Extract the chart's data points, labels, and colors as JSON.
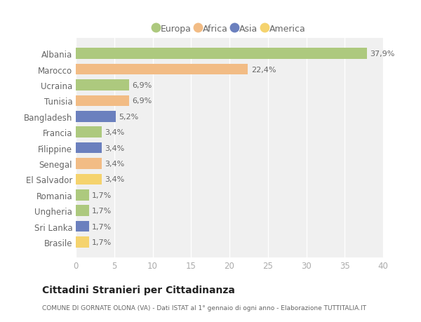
{
  "categories": [
    "Albania",
    "Marocco",
    "Ucraina",
    "Tunisia",
    "Bangladesh",
    "Francia",
    "Filippine",
    "Senegal",
    "El Salvador",
    "Romania",
    "Ungheria",
    "Sri Lanka",
    "Brasile"
  ],
  "values": [
    37.9,
    22.4,
    6.9,
    6.9,
    5.2,
    3.4,
    3.4,
    3.4,
    3.4,
    1.7,
    1.7,
    1.7,
    1.7
  ],
  "labels": [
    "37,9%",
    "22,4%",
    "6,9%",
    "6,9%",
    "5,2%",
    "3,4%",
    "3,4%",
    "3,4%",
    "3,4%",
    "1,7%",
    "1,7%",
    "1,7%",
    "1,7%"
  ],
  "continents": [
    "Europa",
    "Africa",
    "Europa",
    "Africa",
    "Asia",
    "Europa",
    "Asia",
    "Africa",
    "America",
    "Europa",
    "Europa",
    "Asia",
    "America"
  ],
  "colors": {
    "Europa": "#adc97e",
    "Africa": "#f2bc85",
    "Asia": "#6b80be",
    "America": "#f5d36e"
  },
  "background_color": "#ffffff",
  "plot_bg_color": "#f0f0f0",
  "title": "Cittadini Stranieri per Cittadinanza",
  "subtitle": "COMUNE DI GORNATE OLONA (VA) - Dati ISTAT al 1° gennaio di ogni anno - Elaborazione TUTTITALIA.IT",
  "xlim": [
    0,
    40
  ],
  "xticks": [
    0,
    5,
    10,
    15,
    20,
    25,
    30,
    35,
    40
  ],
  "grid_color": "#ffffff",
  "bar_height": 0.7,
  "label_color": "#666666",
  "ytick_color": "#666666",
  "xtick_color": "#aaaaaa"
}
